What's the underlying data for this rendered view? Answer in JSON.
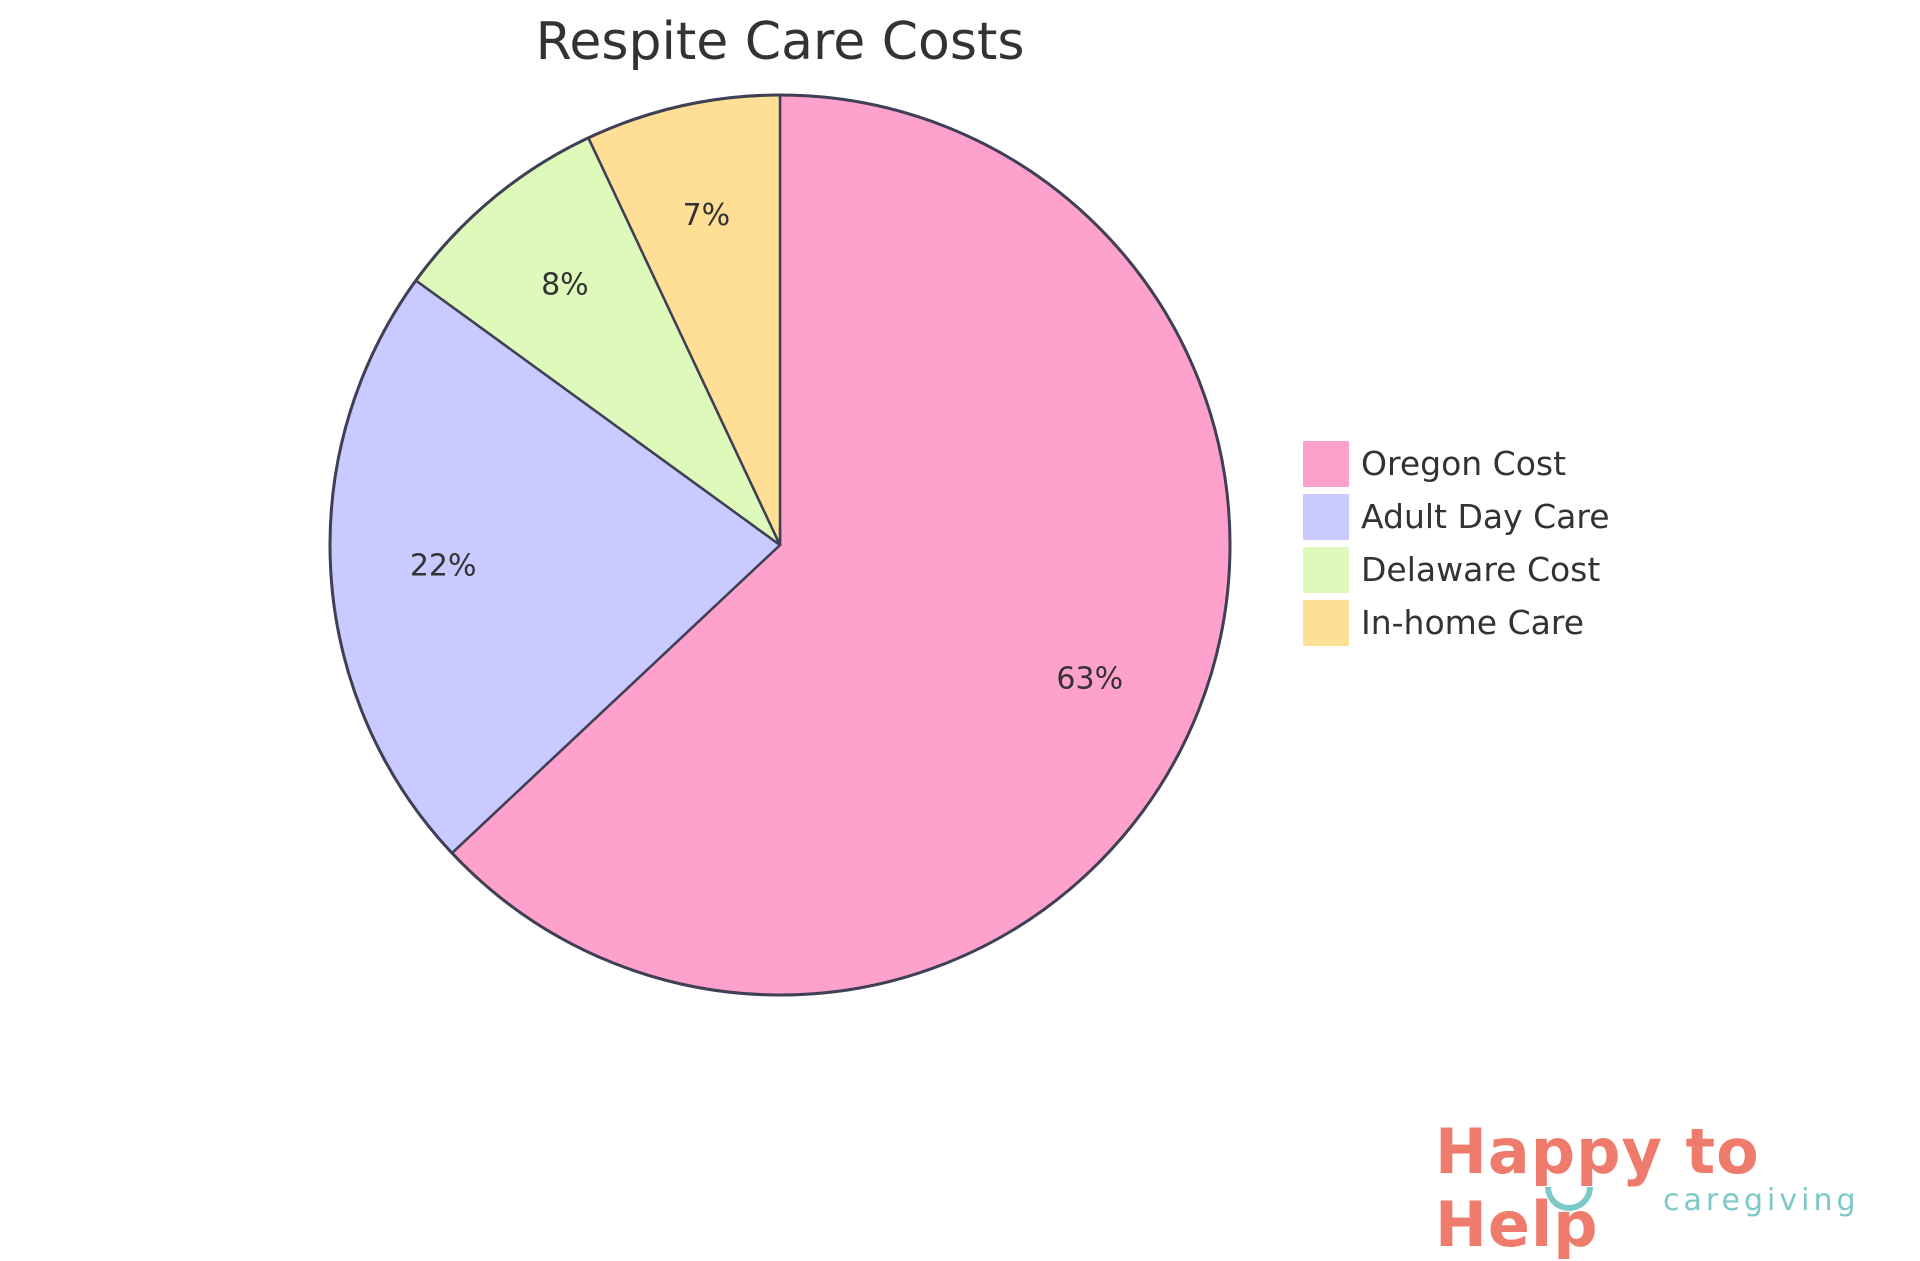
{
  "chart_data": {
    "type": "pie",
    "title": "Respite Care Costs",
    "categories": [
      "Oregon Cost",
      "Adult Day Care",
      "Delaware Cost",
      "In-home Care"
    ],
    "values": [
      63,
      22,
      8,
      7
    ],
    "labels": [
      "63%",
      "22%",
      "8%",
      "7%"
    ],
    "colors": [
      "#FFA1CD",
      "#C9CAFF",
      "#DDFABA",
      "#FFDE95"
    ],
    "stroke_color": "#3f3f55",
    "start": "top",
    "direction": "clockwise",
    "legend_position": "right"
  },
  "watermark": {
    "main": "Happy to Help",
    "sub": "caregiving"
  }
}
